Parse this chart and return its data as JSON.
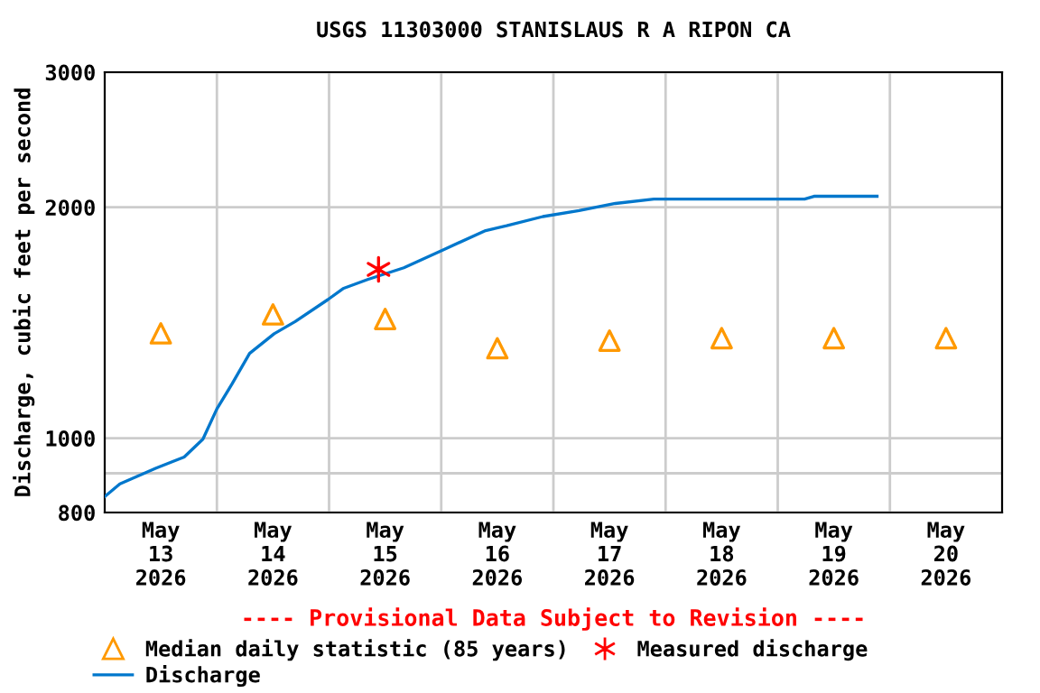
{
  "chart_data": {
    "type": "line",
    "title": "USGS 11303000 STANISLAUS R A RIPON CA",
    "ylabel": "Discharge, cubic feet per second",
    "annotations": [
      "---- Provisional Data Subject to Revision ----"
    ],
    "log": "y",
    "ylim": [
      800,
      3000
    ],
    "yticks": [
      800,
      {
        "value": 900,
        "label": null
      },
      1000,
      2000,
      3000
    ],
    "xlim": [
      "2026-05-13T00:00",
      "2026-05-21T00:00"
    ],
    "xticks": [
      {
        "value": "2026-05-13T12:00",
        "label": "May\n13\n2026"
      },
      {
        "value": "2026-05-14T00:00",
        "label": null
      },
      {
        "value": "2026-05-14T12:00",
        "label": "May\n14\n2026"
      },
      {
        "value": "2026-05-15T00:00",
        "label": null
      },
      {
        "value": "2026-05-15T12:00",
        "label": "May\n15\n2026"
      },
      {
        "value": "2026-05-16T00:00",
        "label": null
      },
      {
        "value": "2026-05-16T12:00",
        "label": "May\n16\n2026"
      },
      {
        "value": "2026-05-17T00:00",
        "label": null
      },
      {
        "value": "2026-05-17T12:00",
        "label": "May\n17\n2026"
      },
      {
        "value": "2026-05-18T00:00",
        "label": null
      },
      {
        "value": "2026-05-18T12:00",
        "label": "May\n18\n2026"
      },
      {
        "value": "2026-05-19T00:00",
        "label": null
      },
      {
        "value": "2026-05-19T12:00",
        "label": "May\n19\n2026"
      },
      {
        "value": "2026-05-20T00:00",
        "label": null
      },
      {
        "value": "2026-05-20T12:00",
        "label": "May\n20\n2026"
      }
    ],
    "grid": true,
    "legend": "bottom",
    "series": [
      {
        "name": "Median daily statistic (85 years)",
        "type": "scatter",
        "marker": "triangle",
        "color": "#ff9900",
        "x": [
          "2026-05-13T12:00",
          "2026-05-14T12:00",
          "2026-05-15T12:00",
          "2026-05-16T12:00",
          "2026-05-17T12:00",
          "2026-05-18T12:00",
          "2026-05-19T12:00",
          "2026-05-20T12:00"
        ],
        "values": [
          1370,
          1450,
          1430,
          1310,
          1340,
          1350,
          1350,
          1350
        ]
      },
      {
        "name": "Measured discharge",
        "type": "scatter",
        "marker": "cross",
        "color": "#ff0000",
        "x": [
          "2026-05-15T10:35"
        ],
        "values": [
          1660
        ]
      },
      {
        "name": "Discharge",
        "color": "#0077cc",
        "x": [
          "2026-05-13T00:00",
          "2026-05-13T03:15",
          "2026-05-13T11:00",
          "2026-05-13T17:00",
          "2026-05-13T21:00",
          "2026-05-14T00:00",
          "2026-05-14T03:15",
          "2026-05-14T07:00",
          "2026-05-14T12:15",
          "2026-05-14T16:45",
          "2026-05-14T23:45",
          "2026-05-15T03:00",
          "2026-05-15T08:15",
          "2026-05-15T16:00",
          "2026-05-16T00:30",
          "2026-05-16T09:30",
          "2026-05-16T14:00",
          "2026-05-16T21:45",
          "2026-05-17T05:30",
          "2026-05-17T13:15",
          "2026-05-17T21:30",
          "2026-05-18T20:00",
          "2026-05-19T05:45",
          "2026-05-19T07:45",
          "2026-05-19T21:15"
        ],
        "values": [
          839,
          872,
          914,
          945,
          997,
          1092,
          1177,
          1290,
          1368,
          1419,
          1516,
          1567,
          1610,
          1668,
          1761,
          1865,
          1892,
          1945,
          1980,
          2023,
          2050,
          2050,
          2050,
          2067,
          2067
        ]
      }
    ]
  }
}
